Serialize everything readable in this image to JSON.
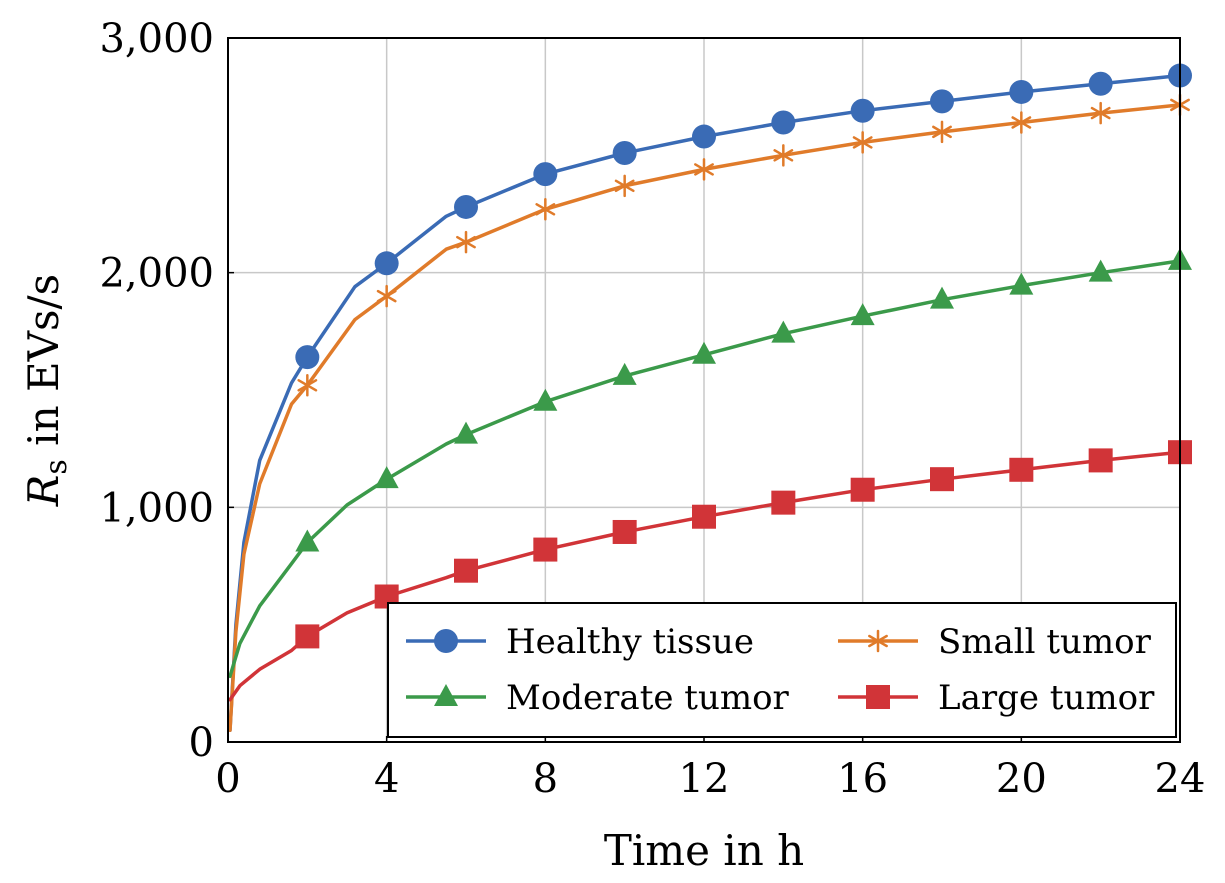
{
  "chart_data": {
    "type": "line",
    "xlabel": "Time in h",
    "ylabel_main": "R",
    "ylabel_sub": "s",
    "ylabel_rest": " in EVs/s",
    "xlim": [
      0,
      24
    ],
    "ylim": [
      0,
      3000
    ],
    "xticks": [
      0,
      4,
      8,
      12,
      16,
      20,
      24
    ],
    "xtick_labels": [
      "0",
      "4",
      "8",
      "12",
      "16",
      "20",
      "24"
    ],
    "yticks": [
      0,
      1000,
      2000,
      3000
    ],
    "ytick_labels": [
      "0",
      "1,000",
      "2,000",
      "3,000"
    ],
    "grid": true,
    "legend_position": "bottom-right",
    "series": [
      {
        "name": "Healthy tissue",
        "color": "#3a6bb5",
        "marker": "circle",
        "x": [
          0.05,
          0.2,
          0.4,
          0.8,
          1.6,
          2,
          3.2,
          4,
          5.5,
          6,
          8,
          10,
          12,
          14,
          16,
          18,
          20,
          22,
          24
        ],
        "y": [
          50,
          500,
          850,
          1200,
          1530,
          1640,
          1940,
          2040,
          2240,
          2280,
          2420,
          2510,
          2580,
          2640,
          2690,
          2730,
          2770,
          2805,
          2840
        ],
        "marker_x": [
          2,
          4,
          6,
          8,
          10,
          12,
          14,
          16,
          18,
          20,
          22,
          24
        ],
        "marker_y": [
          1640,
          2040,
          2280,
          2420,
          2510,
          2580,
          2640,
          2690,
          2730,
          2770,
          2805,
          2840
        ]
      },
      {
        "name": "Small tumor",
        "color": "#e07b2a",
        "marker": "asterisk",
        "x": [
          0.05,
          0.2,
          0.4,
          0.8,
          1.6,
          2,
          3.2,
          4,
          5.5,
          6,
          8,
          10,
          12,
          14,
          16,
          18,
          20,
          22,
          24
        ],
        "y": [
          50,
          470,
          800,
          1100,
          1440,
          1520,
          1800,
          1900,
          2100,
          2130,
          2270,
          2370,
          2440,
          2500,
          2555,
          2600,
          2640,
          2680,
          2715
        ],
        "marker_x": [
          2,
          4,
          6,
          8,
          10,
          12,
          14,
          16,
          18,
          20,
          22,
          24
        ],
        "marker_y": [
          1520,
          1900,
          2130,
          2270,
          2370,
          2440,
          2500,
          2555,
          2600,
          2640,
          2680,
          2715
        ]
      },
      {
        "name": "Moderate tumor",
        "color": "#3b9a4a",
        "marker": "triangle",
        "x": [
          0.05,
          0.3,
          0.8,
          1.6,
          2,
          3,
          4,
          5.5,
          6,
          8,
          10,
          12,
          14,
          16,
          18,
          20,
          22,
          24
        ],
        "y": [
          280,
          420,
          580,
          760,
          850,
          1010,
          1120,
          1270,
          1310,
          1450,
          1560,
          1650,
          1740,
          1815,
          1885,
          1945,
          2000,
          2050
        ],
        "marker_x": [
          2,
          4,
          6,
          8,
          10,
          12,
          14,
          16,
          18,
          20,
          22,
          24
        ],
        "marker_y": [
          850,
          1120,
          1310,
          1450,
          1560,
          1650,
          1740,
          1815,
          1885,
          1945,
          2000,
          2050
        ]
      },
      {
        "name": "Large tumor",
        "color": "#d13438",
        "marker": "square",
        "x": [
          0.05,
          0.3,
          0.8,
          1.6,
          2,
          3,
          4,
          5.5,
          6,
          8,
          10,
          12,
          14,
          16,
          18,
          20,
          22,
          24
        ],
        "y": [
          180,
          240,
          310,
          390,
          450,
          550,
          620,
          700,
          730,
          820,
          895,
          960,
          1020,
          1075,
          1120,
          1160,
          1200,
          1235
        ],
        "marker_x": [
          2,
          4,
          6,
          8,
          10,
          12,
          14,
          16,
          18,
          20,
          22,
          24
        ],
        "marker_y": [
          450,
          620,
          730,
          820,
          895,
          960,
          1020,
          1075,
          1120,
          1160,
          1200,
          1235
        ]
      }
    ]
  }
}
